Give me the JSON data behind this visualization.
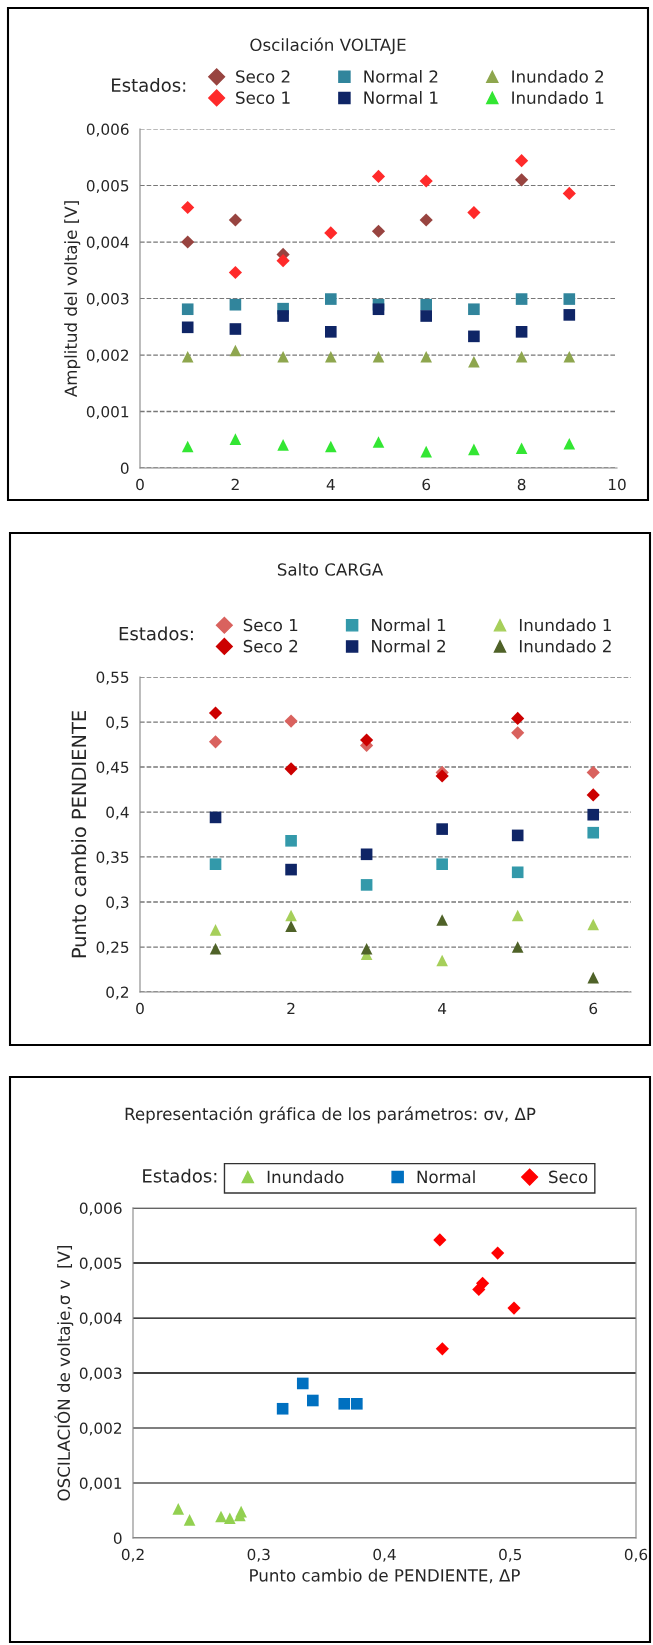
{
  "chart_data": [
    {
      "type": "scatter",
      "title": "Oscilación VOLTAJE",
      "ylabel": "Amplitud del voltaje [V]",
      "legend_title": "Estados:",
      "legend": "top",
      "grid": "y",
      "x": [
        1,
        2,
        3,
        4,
        5,
        6,
        7,
        8,
        9
      ],
      "series": [
        {
          "name": "Seco 2",
          "color": "#984440",
          "marker": "diamond",
          "x": [
            1,
            2,
            3,
            5,
            6,
            8
          ],
          "values": [
            0.004,
            0.00439,
            0.00378,
            0.00419,
            0.00439,
            0.0051
          ]
        },
        {
          "name": "Seco 1",
          "color": "#ff2a2a",
          "marker": "diamond",
          "values": [
            0.00461,
            0.00346,
            0.00367,
            0.00416,
            0.00516,
            0.00508,
            0.00452,
            0.00544,
            0.00486
          ]
        },
        {
          "name": "Normal 2",
          "color": "#31859c",
          "marker": "square",
          "values": [
            0.00281,
            0.00289,
            0.00282,
            0.00299,
            0.00289,
            0.00289,
            0.00281,
            0.00299,
            0.00299
          ]
        },
        {
          "name": "Normal 1",
          "color": "#0f2566",
          "marker": "square",
          "values": [
            0.00249,
            0.00246,
            0.00269,
            0.00241,
            0.00281,
            0.00269,
            0.00233,
            0.00241,
            0.00271
          ]
        },
        {
          "name": "Inundado 2",
          "color": "#8ea64e",
          "marker": "triangle",
          "values": [
            0.00197,
            0.00208,
            0.00197,
            0.00197,
            0.00197,
            0.00197,
            0.00188,
            0.00197,
            0.00197
          ]
        },
        {
          "name": "Inundado 1",
          "color": "#33e633",
          "marker": "triangle",
          "values": [
            0.00038,
            0.00051,
            0.00041,
            0.00038,
            0.00046,
            0.00029,
            0.00033,
            0.00035,
            0.00043
          ]
        }
      ],
      "xlim": [
        0,
        10
      ],
      "xticks": [
        0,
        2,
        4,
        6,
        8,
        10
      ],
      "ylim": [
        0,
        0.006
      ],
      "yticks": [
        0,
        {
          "value": 0.001,
          "label": "0,001"
        },
        {
          "value": 0.002,
          "label": "0,002"
        },
        {
          "value": 0.003,
          "label": "0,003"
        },
        {
          "value": 0.004,
          "label": "0,004"
        },
        {
          "value": 0.005,
          "label": "0,005"
        },
        {
          "value": 0.006,
          "label": "0,006"
        }
      ]
    },
    {
      "type": "scatter",
      "title": "Salto CARGA",
      "ylabel": "Punto cambio PENDIENTE",
      "legend_title": "Estados:",
      "legend": "top",
      "grid": "y",
      "x": [
        1,
        2,
        3,
        4,
        5,
        6
      ],
      "series": [
        {
          "name": "Seco 1",
          "color": "#d9625e",
          "marker": "diamond",
          "values": [
            0.478,
            0.501,
            0.474,
            0.444,
            0.488,
            0.444
          ]
        },
        {
          "name": "Seco 2",
          "color": "#cc0000",
          "marker": "diamond",
          "values": [
            0.51,
            0.448,
            0.48,
            0.44,
            0.504,
            0.419
          ]
        },
        {
          "name": "Normal 1",
          "color": "#3399aa",
          "marker": "square",
          "values": [
            0.342,
            0.368,
            0.319,
            0.342,
            0.333,
            0.377
          ]
        },
        {
          "name": "Normal 2",
          "color": "#0f2566",
          "marker": "square",
          "values": [
            0.394,
            0.336,
            0.353,
            0.381,
            0.374,
            0.397
          ]
        },
        {
          "name": "Inundado 1",
          "color": "#a6cf5a",
          "marker": "triangle",
          "values": [
            0.269,
            0.285,
            0.242,
            0.235,
            0.285,
            0.275
          ]
        },
        {
          "name": "Inundado 2",
          "color": "#4f6228",
          "marker": "triangle",
          "values": [
            0.248,
            0.273,
            0.248,
            0.28,
            0.25,
            0.216
          ]
        }
      ],
      "xlim": [
        0,
        6.5
      ],
      "xticks": [
        0,
        2,
        4,
        6
      ],
      "ylim": [
        0.2,
        0.55
      ],
      "yticks": [
        {
          "value": 0.2,
          "label": "0,2"
        },
        {
          "value": 0.25,
          "label": "0,25"
        },
        {
          "value": 0.3,
          "label": "0,3"
        },
        {
          "value": 0.35,
          "label": "0,35"
        },
        {
          "value": 0.4,
          "label": "0,4"
        },
        {
          "value": 0.45,
          "label": "0,45"
        },
        {
          "value": 0.5,
          "label": "0,5"
        },
        {
          "value": 0.55,
          "label": "0,55"
        }
      ]
    },
    {
      "type": "scatter",
      "title": "Representación gráfica de los parámetros: σv, ΔP",
      "xlabel": "Punto cambio de PENDIENTE, ΔP",
      "ylabel": "OSCILACIÓN de voltaje,σ v  [V]",
      "legend_title": "Estados:",
      "legend": "top",
      "grid": "y",
      "series": [
        {
          "name": "Inundado",
          "color": "#92d050",
          "marker": "triangle",
          "x": [
            0.236,
            0.245,
            0.27,
            0.277,
            0.285,
            0.286
          ],
          "values": [
            0.00053,
            0.00033,
            0.00039,
            0.00036,
            0.00041,
            0.00048
          ]
        },
        {
          "name": "Normal",
          "color": "#0070c0",
          "marker": "square",
          "x": [
            0.319,
            0.335,
            0.343,
            0.368,
            0.378
          ],
          "values": [
            0.00235,
            0.00281,
            0.0025,
            0.00244,
            0.00244
          ]
        },
        {
          "name": "Seco",
          "color": "#ff0000",
          "marker": "diamond",
          "x": [
            0.444,
            0.49,
            0.478,
            0.475,
            0.503,
            0.446
          ],
          "values": [
            0.00542,
            0.00518,
            0.00463,
            0.00452,
            0.00418,
            0.00344
          ]
        }
      ],
      "xlim": [
        0.2,
        0.6
      ],
      "xticks": [
        {
          "value": 0.2,
          "label": "0,2"
        },
        {
          "value": 0.3,
          "label": "0,3"
        },
        {
          "value": 0.4,
          "label": "0,4"
        },
        {
          "value": 0.5,
          "label": "0,5"
        },
        {
          "value": 0.6,
          "label": "0,6"
        }
      ],
      "ylim": [
        0,
        0.006
      ],
      "yticks": [
        0,
        {
          "value": 0.001,
          "label": "0,001"
        },
        {
          "value": 0.002,
          "label": "0,002"
        },
        {
          "value": 0.003,
          "label": "0,003"
        },
        {
          "value": 0.004,
          "label": "0,004"
        },
        {
          "value": 0.005,
          "label": "0,005"
        },
        {
          "value": 0.006,
          "label": "0,006"
        }
      ]
    }
  ]
}
